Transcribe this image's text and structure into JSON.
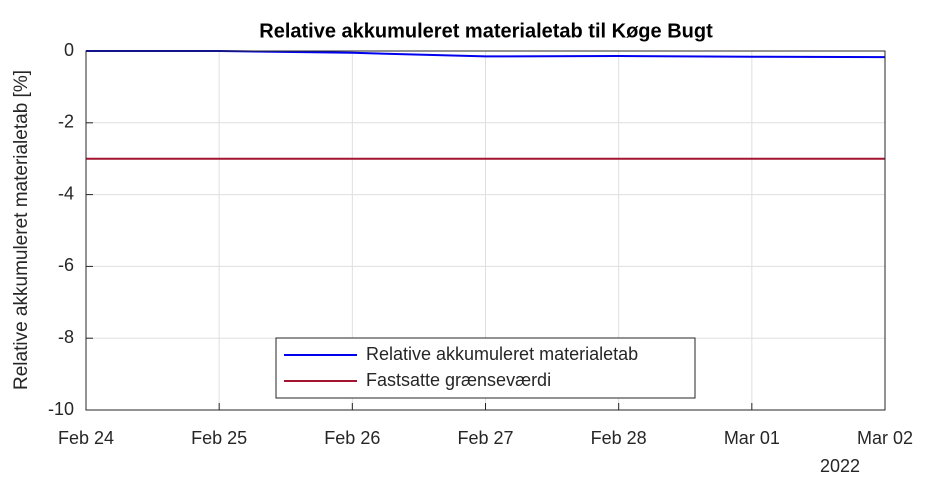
{
  "chart_data": {
    "type": "line",
    "title": "Relative akkumuleret materialetab til Køge Bugt",
    "ylabel": "Relative akkumuleret materialetab [%]",
    "x_secondary_label": "2022",
    "xlim": [
      "2022-02-24",
      "2022-03-02"
    ],
    "xticks": [
      {
        "value": "2022-02-24",
        "label": "Feb 24"
      },
      {
        "value": "2022-02-25",
        "label": "Feb 25"
      },
      {
        "value": "2022-02-26",
        "label": "Feb 26"
      },
      {
        "value": "2022-02-27",
        "label": "Feb 27"
      },
      {
        "value": "2022-02-28",
        "label": "Feb 28"
      },
      {
        "value": "2022-03-01",
        "label": "Mar 01"
      },
      {
        "value": "2022-03-02",
        "label": "Mar 02"
      }
    ],
    "ylim": [
      -10,
      0
    ],
    "yticks": [
      -10,
      -8,
      -6,
      -4,
      -2,
      0
    ],
    "grid": true,
    "legend": "south",
    "series": [
      {
        "name": "Relative akkumuleret materialetab",
        "color": "#0000ee",
        "x": [
          "2022-02-24",
          "2022-02-25",
          "2022-02-26",
          "2022-02-27",
          "2022-02-28",
          "2022-03-01",
          "2022-03-02"
        ],
        "values": [
          0,
          0,
          -0.05,
          -0.15,
          -0.14,
          -0.16,
          -0.17
        ]
      },
      {
        "name": "Fastsatte grænseværdi",
        "color": "#a2142f",
        "x": [
          "2022-02-24",
          "2022-03-02"
        ],
        "values": [
          -3,
          -3
        ]
      }
    ]
  }
}
